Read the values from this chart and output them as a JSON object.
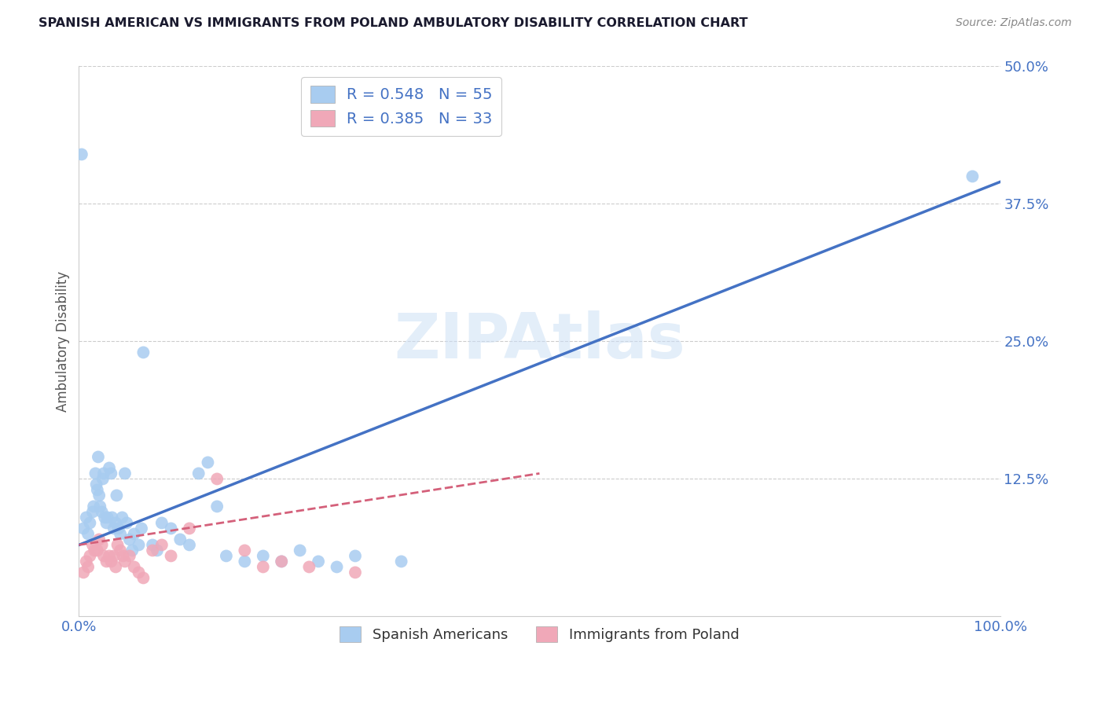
{
  "title": "SPANISH AMERICAN VS IMMIGRANTS FROM POLAND AMBULATORY DISABILITY CORRELATION CHART",
  "source": "Source: ZipAtlas.com",
  "ylabel": "Ambulatory Disability",
  "xlabel": "",
  "xlim": [
    0,
    1.0
  ],
  "ylim": [
    0,
    0.5
  ],
  "yticks": [
    0.0,
    0.125,
    0.25,
    0.375,
    0.5
  ],
  "ytick_labels": [
    "",
    "12.5%",
    "25.0%",
    "37.5%",
    "50.0%"
  ],
  "xticks": [
    0.0,
    1.0
  ],
  "xtick_labels": [
    "0.0%",
    "100.0%"
  ],
  "grid_color": "#cccccc",
  "background_color": "#ffffff",
  "watermark": "ZIPAtlas",
  "series1_color": "#a8ccf0",
  "series2_color": "#f0a8b8",
  "series1_line_color": "#4472c4",
  "series2_line_color": "#d4607a",
  "series1_label": "Spanish Americans",
  "series2_label": "Immigrants from Poland",
  "R1": 0.548,
  "N1": 55,
  "R2": 0.385,
  "N2": 33,
  "legend_text_color": "#4472c4",
  "axis_label_color": "#4472c4",
  "title_color": "#1a1a2e",
  "series1_x": [
    0.005,
    0.008,
    0.01,
    0.012,
    0.015,
    0.016,
    0.018,
    0.019,
    0.02,
    0.021,
    0.022,
    0.023,
    0.025,
    0.026,
    0.027,
    0.028,
    0.03,
    0.031,
    0.033,
    0.035,
    0.036,
    0.038,
    0.04,
    0.041,
    0.043,
    0.045,
    0.047,
    0.05,
    0.052,
    0.055,
    0.058,
    0.06,
    0.065,
    0.068,
    0.07,
    0.08,
    0.085,
    0.09,
    0.1,
    0.11,
    0.12,
    0.13,
    0.14,
    0.15,
    0.16,
    0.18,
    0.2,
    0.22,
    0.24,
    0.26,
    0.28,
    0.3,
    0.35,
    0.97,
    0.003
  ],
  "series1_y": [
    0.08,
    0.09,
    0.075,
    0.085,
    0.095,
    0.1,
    0.13,
    0.12,
    0.115,
    0.145,
    0.11,
    0.1,
    0.095,
    0.125,
    0.13,
    0.09,
    0.085,
    0.09,
    0.135,
    0.13,
    0.09,
    0.08,
    0.085,
    0.11,
    0.08,
    0.075,
    0.09,
    0.13,
    0.085,
    0.07,
    0.06,
    0.075,
    0.065,
    0.08,
    0.24,
    0.065,
    0.06,
    0.085,
    0.08,
    0.07,
    0.065,
    0.13,
    0.14,
    0.1,
    0.055,
    0.05,
    0.055,
    0.05,
    0.06,
    0.05,
    0.045,
    0.055,
    0.05,
    0.4,
    0.42
  ],
  "series2_x": [
    0.005,
    0.008,
    0.01,
    0.012,
    0.015,
    0.017,
    0.02,
    0.022,
    0.025,
    0.027,
    0.03,
    0.033,
    0.035,
    0.038,
    0.04,
    0.042,
    0.045,
    0.048,
    0.05,
    0.055,
    0.06,
    0.065,
    0.07,
    0.08,
    0.09,
    0.1,
    0.12,
    0.15,
    0.18,
    0.2,
    0.22,
    0.25,
    0.3
  ],
  "series2_y": [
    0.04,
    0.05,
    0.045,
    0.055,
    0.065,
    0.06,
    0.06,
    0.07,
    0.065,
    0.055,
    0.05,
    0.055,
    0.05,
    0.055,
    0.045,
    0.065,
    0.06,
    0.055,
    0.05,
    0.055,
    0.045,
    0.04,
    0.035,
    0.06,
    0.065,
    0.055,
    0.08,
    0.125,
    0.06,
    0.045,
    0.05,
    0.045,
    0.04
  ],
  "blue_line_x0": 0.0,
  "blue_line_y0": 0.065,
  "blue_line_x1": 1.0,
  "blue_line_y1": 0.395,
  "pink_line_x0": 0.0,
  "pink_line_y0": 0.065,
  "pink_line_x1": 0.5,
  "pink_line_y1": 0.13
}
